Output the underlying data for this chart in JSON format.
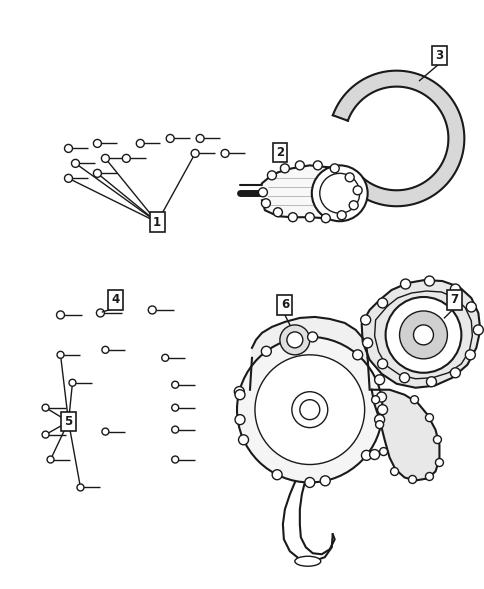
{
  "background": "#ffffff",
  "dark": "#1a1a1a",
  "figsize": [
    4.85,
    5.89
  ],
  "dpi": 100
}
